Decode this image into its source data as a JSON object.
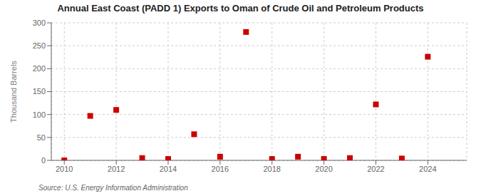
{
  "chart_data": {
    "type": "scatter",
    "title": "Annual East Coast (PADD 1) Exports to Oman of Crude Oil and Petroleum Products",
    "ylabel": "Thousand Barrels",
    "source": "Source: U.S. Energy Information Administration",
    "x": [
      2010,
      2011,
      2012,
      2013,
      2014,
      2015,
      2016,
      2017,
      2018,
      2019,
      2020,
      2021,
      2022,
      2023,
      2024
    ],
    "values": [
      0,
      97,
      110,
      5,
      3,
      57,
      8,
      280,
      3,
      8,
      3,
      5,
      122,
      4,
      226
    ],
    "color": "#cc0000",
    "marker": "square",
    "xlim": [
      2009.5,
      2025.5
    ],
    "xticks": [
      2010,
      2012,
      2014,
      2016,
      2018,
      2020,
      2022,
      2024
    ],
    "ylim": [
      0,
      300
    ],
    "yticks": [
      0,
      50,
      100,
      150,
      200,
      250,
      300
    ],
    "grid": true
  }
}
